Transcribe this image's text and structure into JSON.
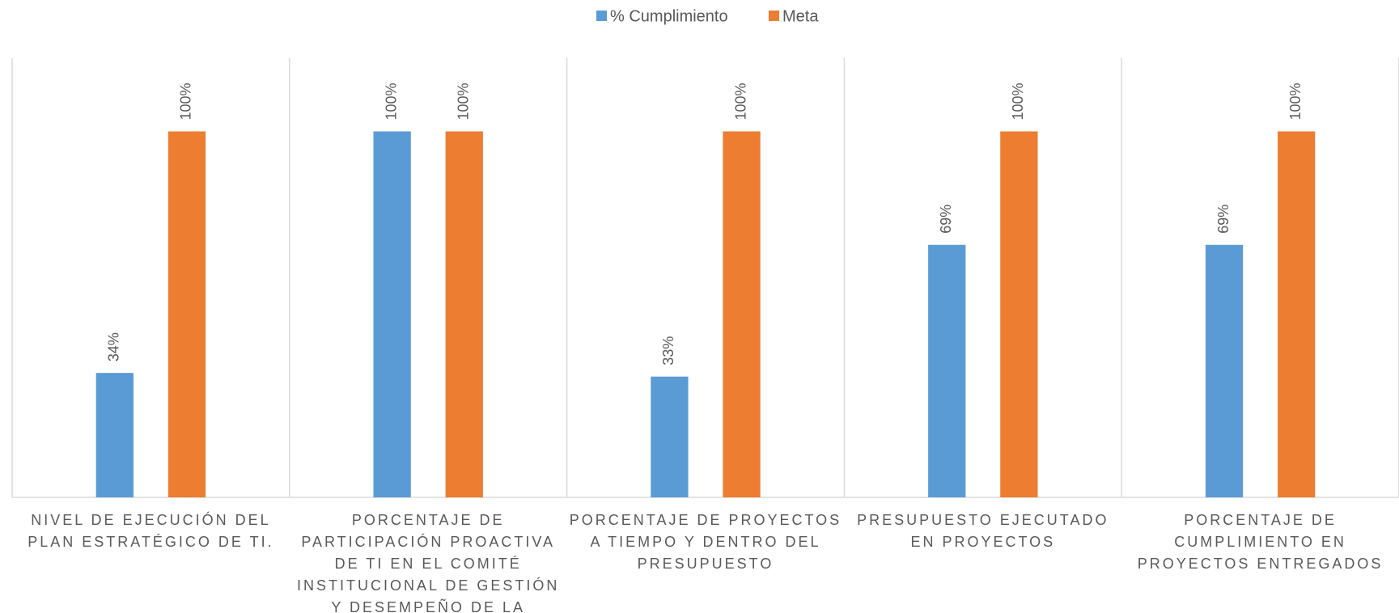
{
  "chart_data": {
    "type": "bar",
    "categories": [
      "NIVEL DE EJECUCIÓN DEL PLAN ESTRATÉGICO DE TI.",
      "PORCENTAJE DE PARTICIPACIÓN PROACTIVA DE TI EN EL COMITÉ INSTITUCIONAL DE GESTIÓN Y DESEMPEÑO DE LA ENTIDAD",
      "PORCENTAJE DE PROYECTOS A TIEMPO Y DENTRO DEL PRESUPUESTO",
      "PRESUPUESTO EJECUTADO EN PROYECTOS",
      "PORCENTAJE DE CUMPLIMIENTO EN PROYECTOS ENTREGADOS"
    ],
    "series": [
      {
        "name": "% Cumplimiento",
        "color": "#5b9bd5",
        "values": [
          34,
          100,
          33,
          69,
          69
        ],
        "value_labels": [
          "34%",
          "100%",
          "33%",
          "69%",
          "69%"
        ]
      },
      {
        "name": "Meta",
        "color": "#ed7d31",
        "values": [
          100,
          100,
          100,
          100,
          100
        ],
        "value_labels": [
          "100%",
          "100%",
          "100%",
          "100%",
          "100%"
        ]
      }
    ],
    "ylim": [
      0,
      120
    ],
    "legend": "top"
  }
}
